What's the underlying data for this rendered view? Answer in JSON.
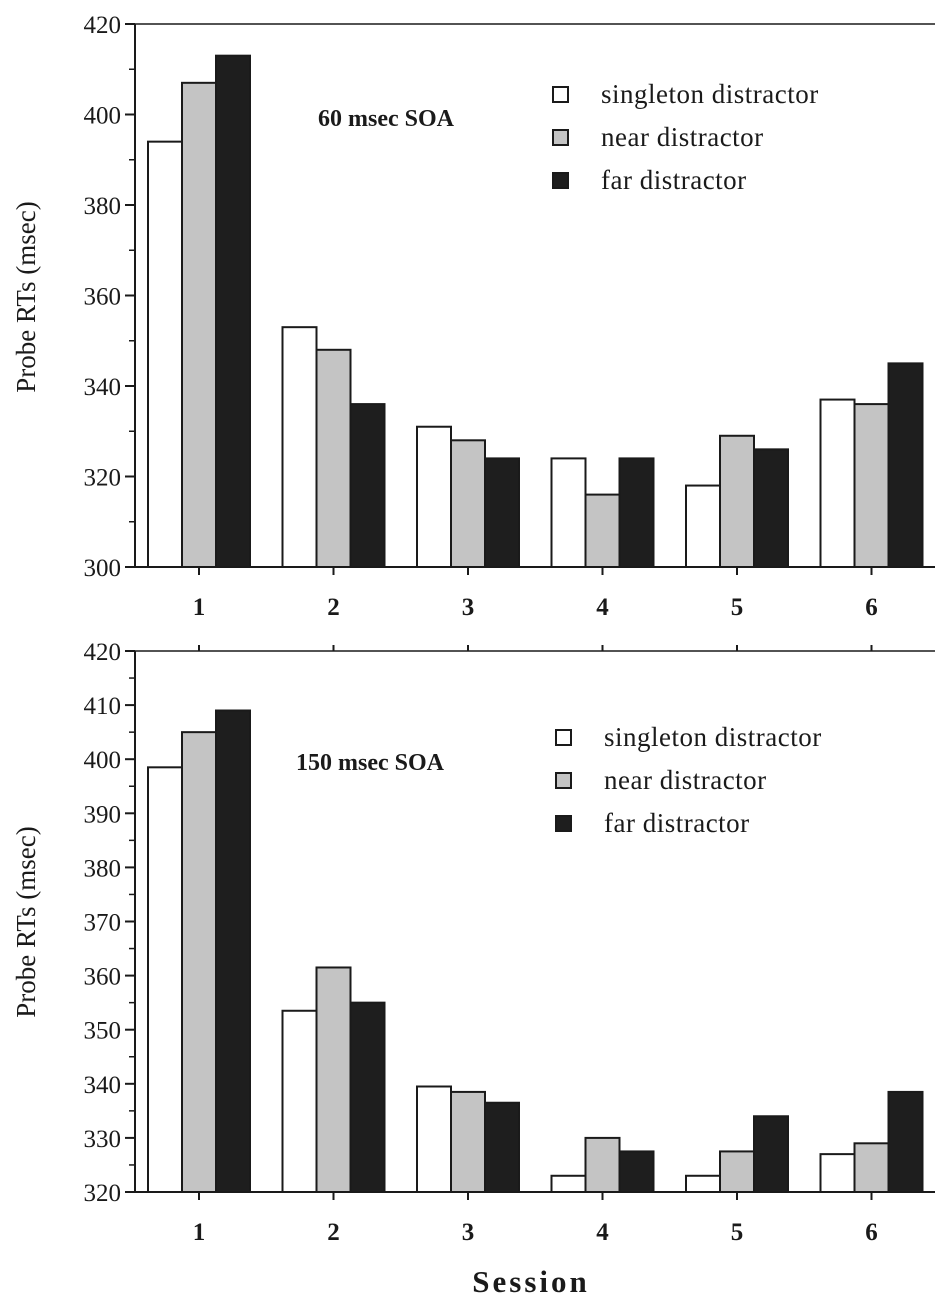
{
  "chart_data": [
    {
      "type": "bar",
      "title": "60 msec SOA",
      "xlabel": "",
      "ylabel": "Probe RTs (msec)",
      "ylim": [
        300,
        420
      ],
      "yticks": [
        "300",
        "320",
        "340",
        "360",
        "380",
        "400",
        "420"
      ],
      "categories": [
        "1",
        "2",
        "3",
        "4",
        "5",
        "6"
      ],
      "legend_position": "top-right",
      "grid": false,
      "series": [
        {
          "name": "singleton distractor",
          "color": "#ffffff",
          "values": [
            394,
            353,
            331,
            324,
            318,
            337
          ]
        },
        {
          "name": "near distractor",
          "color": "#c4c4c4",
          "values": [
            407,
            348,
            328,
            316,
            329,
            336
          ]
        },
        {
          "name": "far distractor",
          "color": "#1e1e1e",
          "values": [
            413,
            336,
            324,
            324,
            326,
            345
          ]
        }
      ]
    },
    {
      "type": "bar",
      "title": "150 msec SOA",
      "xlabel": "Session",
      "ylabel": "Probe RTs (msec)",
      "ylim": [
        320,
        420
      ],
      "yticks": [
        "320",
        "330",
        "340",
        "350",
        "360",
        "370",
        "380",
        "390",
        "400",
        "410",
        "420"
      ],
      "categories": [
        "1",
        "2",
        "3",
        "4",
        "5",
        "6"
      ],
      "legend_position": "top-right",
      "grid": false,
      "series": [
        {
          "name": "singleton distractor",
          "color": "#ffffff",
          "values": [
            398.5,
            353.5,
            339.5,
            323,
            323,
            327
          ]
        },
        {
          "name": "near distractor",
          "color": "#c4c4c4",
          "values": [
            405,
            361.5,
            338.5,
            330,
            327.5,
            329
          ]
        },
        {
          "name": "far distractor",
          "color": "#1e1e1e",
          "values": [
            409,
            355,
            336.5,
            327.5,
            334,
            338.5
          ]
        }
      ]
    }
  ]
}
